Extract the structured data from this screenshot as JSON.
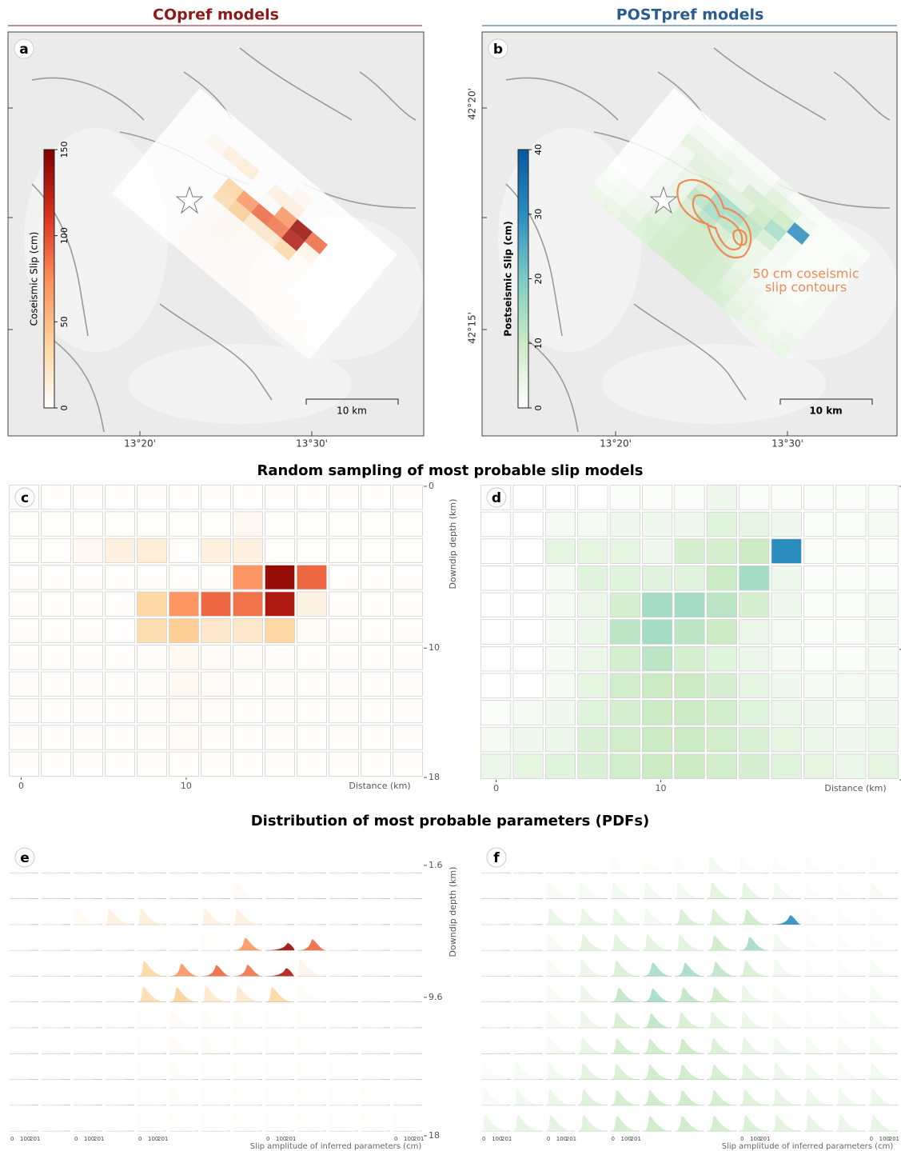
{
  "columns": [
    {
      "title": "COpref models"
    },
    {
      "title": "POSTpref models"
    }
  ],
  "maps": [
    {
      "label": "a",
      "colorbar": {
        "label": "Coseismic Slip (cm)",
        "lim": [
          0,
          150
        ],
        "ticks": [
          0,
          50,
          100,
          150
        ],
        "colors": [
          "#ffffff",
          "#fdd49e",
          "#fc8d59",
          "#d7301f",
          "#7f0000"
        ]
      },
      "lon_ticks": [
        "13°20'",
        "13°30'"
      ],
      "scale_bar": "10 km"
    },
    {
      "label": "b",
      "colorbar": {
        "label": "Postseismic Slip (cm)",
        "lim": [
          0,
          40
        ],
        "ticks": [
          0,
          10,
          20,
          30,
          40
        ],
        "colors": [
          "#ffffff",
          "#ccebc5",
          "#7bccc4",
          "#2b8cbe",
          "#08589e"
        ]
      },
      "lon_ticks": [
        "13°20'",
        "13°30'"
      ],
      "lat_ticks": [
        "42°20'",
        "42°15'"
      ],
      "scale_bar": "10 km",
      "annotation": [
        "50 cm coseismic",
        "slip contours"
      ]
    }
  ],
  "sections": [
    "Random sampling of most probable slip models",
    "Distribution of most probable parameters (PDFs)"
  ],
  "samples": [
    {
      "label": "c",
      "xticks": [
        0,
        10
      ],
      "xlim": [
        -0.8,
        24.4
      ],
      "xlabel": "Distance (km)",
      "yticks": [
        0,
        10,
        18
      ],
      "ylim": [
        0,
        18
      ],
      "ylabel": "Downdip depth (km)",
      "slip": [
        [
          0,
          0,
          0,
          0,
          0,
          0,
          0,
          0,
          0,
          0,
          0,
          0,
          0
        ],
        [
          0,
          0,
          0,
          0,
          0,
          0,
          0,
          5,
          0,
          0,
          0,
          0,
          0
        ],
        [
          0,
          0,
          5,
          12,
          15,
          0,
          12,
          12,
          0,
          0,
          0,
          0,
          0
        ],
        [
          0,
          0,
          0,
          0,
          0,
          0,
          2,
          70,
          140,
          90,
          0,
          0,
          0
        ],
        [
          0,
          0,
          0,
          0,
          35,
          70,
          90,
          85,
          130,
          10,
          0,
          0,
          0
        ],
        [
          0,
          0,
          0,
          0,
          30,
          40,
          20,
          20,
          35,
          3,
          0,
          0,
          0
        ],
        [
          0,
          0,
          0,
          0,
          2,
          5,
          3,
          3,
          2,
          2,
          0,
          0,
          0
        ],
        [
          0,
          0,
          0,
          0,
          2,
          5,
          3,
          2,
          2,
          2,
          0,
          0,
          0
        ],
        [
          0,
          0,
          0,
          0,
          2,
          3,
          2,
          2,
          2,
          2,
          2,
          0,
          0
        ],
        [
          0,
          0,
          0,
          0,
          2,
          3,
          2,
          2,
          2,
          2,
          2,
          2,
          0
        ],
        [
          0,
          0,
          0,
          0,
          2,
          2,
          2,
          2,
          2,
          2,
          2,
          2,
          2
        ]
      ]
    },
    {
      "label": "d",
      "xticks": [
        0,
        10
      ],
      "xlim": [
        -1,
        24.5
      ],
      "xlabel": "Distance (km)",
      "yticks": [
        0,
        10,
        18
      ],
      "ylim": [
        0,
        18
      ],
      "ylabel": "Downdip depth (km)",
      "slip": [
        [
          0,
          0,
          0,
          0,
          1,
          1,
          1,
          3,
          1,
          1,
          1,
          1,
          1
        ],
        [
          0,
          0,
          2,
          2,
          3,
          3,
          3,
          6,
          5,
          3,
          1,
          1,
          2
        ],
        [
          0,
          0,
          5,
          5,
          5,
          3,
          8,
          8,
          10,
          30,
          1,
          1,
          1
        ],
        [
          0,
          0,
          2,
          6,
          6,
          6,
          6,
          10,
          15,
          3,
          1,
          1,
          1
        ],
        [
          0,
          0,
          2,
          4,
          8,
          15,
          15,
          12,
          8,
          3,
          1,
          1,
          2
        ],
        [
          0,
          0,
          2,
          4,
          12,
          15,
          12,
          10,
          4,
          2,
          1,
          1,
          2
        ],
        [
          0,
          0,
          2,
          4,
          8,
          12,
          8,
          6,
          4,
          2,
          1,
          1,
          2
        ],
        [
          0,
          0,
          2,
          5,
          9,
          10,
          10,
          8,
          5,
          3,
          2,
          2,
          2
        ],
        [
          1,
          2,
          3,
          6,
          8,
          10,
          10,
          9,
          6,
          4,
          3,
          2,
          3
        ],
        [
          2,
          3,
          4,
          7,
          9,
          10,
          10,
          9,
          7,
          5,
          4,
          3,
          4
        ],
        [
          4,
          5,
          6,
          7,
          9,
          10,
          10,
          9,
          8,
          6,
          5,
          4,
          5
        ]
      ]
    }
  ],
  "pdfs": [
    {
      "label": "e",
      "yticks": [
        1.6,
        9.6,
        18
      ],
      "ylim": [
        1.6,
        18
      ],
      "ylabel": "Downdip depth (km)",
      "xtick_labels": [
        "0",
        "100",
        "201"
      ],
      "xlabel": "Slip amplitude of inferred parameters (cm)"
    },
    {
      "label": "f",
      "xtick_labels": [
        "0",
        "100",
        "201"
      ],
      "xlabel": "Slip amplitude of inferred parameters (cm)"
    }
  ]
}
